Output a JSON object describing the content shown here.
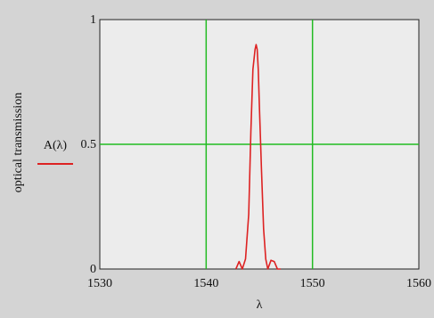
{
  "chart_data": {
    "type": "line",
    "title": "",
    "xlabel": "λ",
    "ylabel": "optical transmission",
    "xlim": [
      1530,
      1560
    ],
    "ylim": [
      0,
      1
    ],
    "x_ticks": [
      "1530",
      "1540",
      "1550",
      "1560"
    ],
    "y_ticks": [
      "0",
      "0.5",
      "1"
    ],
    "grid": {
      "x": [
        1540,
        1550
      ],
      "y": [
        0.5
      ]
    },
    "grid_color": "#22bb22",
    "legend": "left",
    "series": [
      {
        "name": "A(λ)",
        "color": "#dd2222",
        "x": [
          1542.8,
          1543.1,
          1543.4,
          1543.7,
          1544.0,
          1544.2,
          1544.4,
          1544.6,
          1544.7,
          1544.8,
          1544.9,
          1545.0,
          1545.2,
          1545.4,
          1545.6,
          1545.8,
          1546.1,
          1546.4,
          1546.7,
          1547.0
        ],
        "y": [
          0.0,
          0.03,
          0.0,
          0.04,
          0.22,
          0.55,
          0.8,
          0.88,
          0.9,
          0.88,
          0.8,
          0.66,
          0.4,
          0.16,
          0.04,
          0.0,
          0.035,
          0.03,
          0.0,
          0.0
        ]
      }
    ]
  }
}
